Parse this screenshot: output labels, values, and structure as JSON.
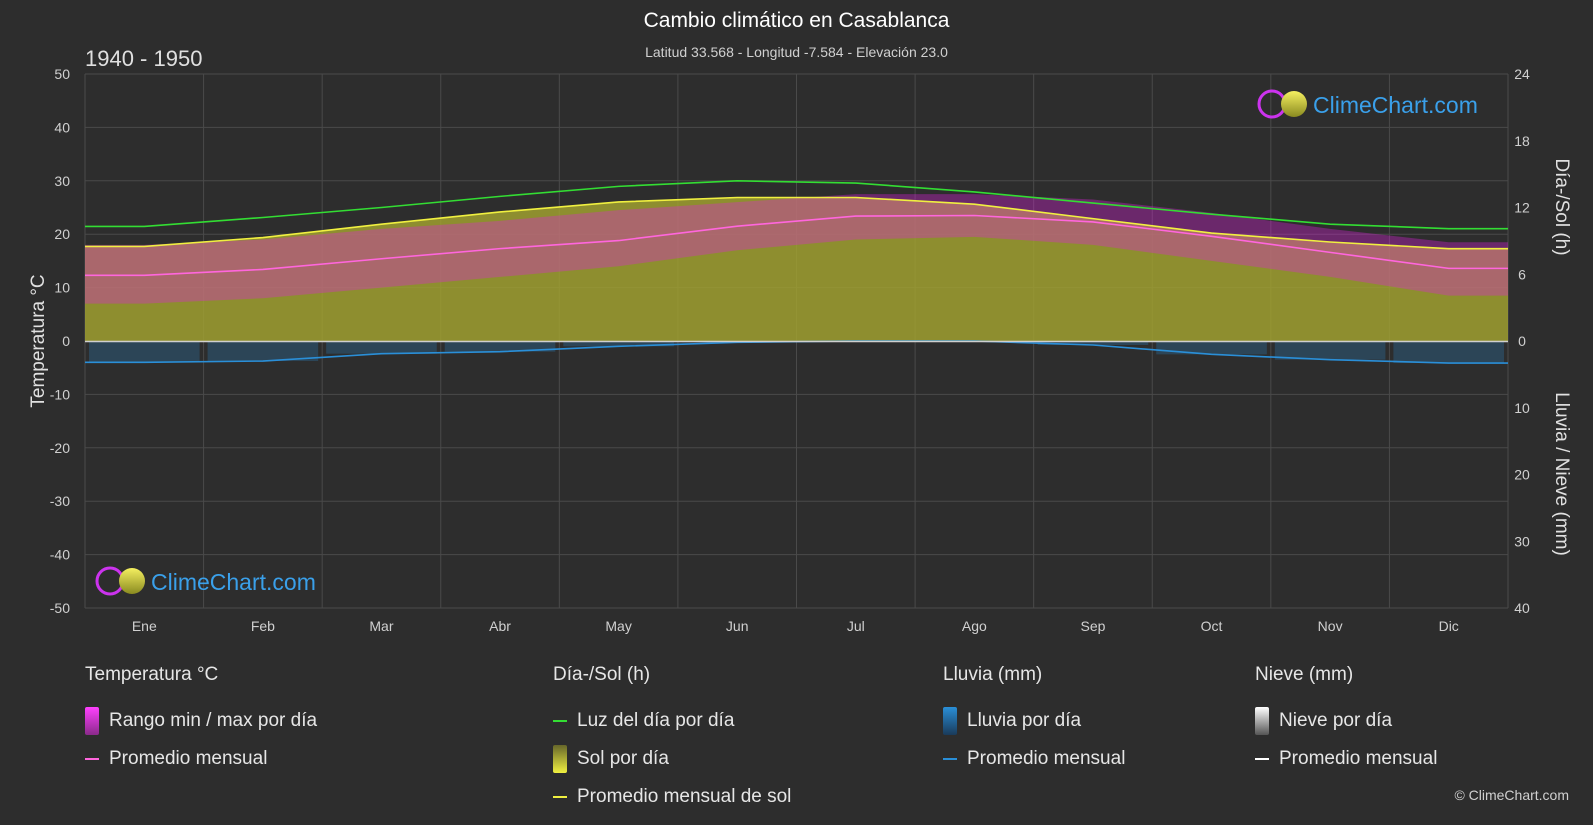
{
  "header": {
    "title": "Cambio climático en Casablanca",
    "subtitle": "Latitud 33.568 - Longitud -7.584 - Elevación 23.0",
    "period": "1940 - 1950"
  },
  "axes": {
    "left_label": "Temperatura °C",
    "right_top_label": "Día-/Sol (h)",
    "right_bottom_label": "Lluvia / Nieve (mm)"
  },
  "watermark": {
    "text": "ClimeChart.com"
  },
  "copyright": "© ClimeChart.com",
  "legend": {
    "temperature": {
      "heading": "Temperatura °C",
      "range": "Rango min / max por día",
      "avg": "Promedio mensual"
    },
    "daysun": {
      "heading": "Día-/Sol (h)",
      "daylight": "Luz del día por día",
      "sun": "Sol por día",
      "sun_avg": "Promedio mensual de sol"
    },
    "rain": {
      "heading": "Lluvia (mm)",
      "rain": "Lluvia por día",
      "avg": "Promedio mensual"
    },
    "snow": {
      "heading": "Nieve (mm)",
      "snow": "Nieve por día",
      "avg": "Promedio mensual"
    }
  },
  "colors": {
    "daylight": "#33dd33",
    "sun_line": "#f0f040",
    "temp_avg": "#ff66dd",
    "temp_range": "#e020e0",
    "sun_fill": "#a0a030",
    "rain": "#2a8fd8",
    "snow": "#ffffff"
  },
  "chart_data": {
    "type": "area",
    "categories": [
      "Ene",
      "Feb",
      "Mar",
      "Abr",
      "May",
      "Jun",
      "Jul",
      "Ago",
      "Sep",
      "Oct",
      "Nov",
      "Dic"
    ],
    "temp_ticks": [
      50,
      40,
      30,
      20,
      10,
      0,
      -10,
      -20,
      -30,
      -40,
      -50
    ],
    "hours_ticks": [
      24,
      18,
      12,
      6,
      0
    ],
    "rain_ticks": [
      0,
      10,
      20,
      30,
      40
    ],
    "ylim_temp": [
      -50,
      50
    ],
    "ylim_hours": [
      0,
      24
    ],
    "ylim_rain_mm": [
      0,
      40
    ],
    "series": [
      {
        "name": "Luz del día por día",
        "unit": "h",
        "values": [
          10.3,
          11.1,
          12.0,
          13.0,
          13.9,
          14.4,
          14.2,
          13.4,
          12.4,
          11.4,
          10.5,
          10.1
        ]
      },
      {
        "name": "Promedio mensual de sol",
        "unit": "h",
        "values": [
          8.5,
          9.3,
          10.5,
          11.6,
          12.5,
          12.9,
          12.9,
          12.3,
          11.0,
          9.7,
          8.9,
          8.3
        ]
      },
      {
        "name": "Temperatura promedio mensual",
        "unit": "°C",
        "values": [
          12.3,
          13.4,
          15.4,
          17.3,
          18.8,
          21.5,
          23.4,
          23.5,
          22.3,
          19.6,
          16.6,
          13.6
        ]
      },
      {
        "name": "Temperatura máxima diaria",
        "unit": "°C",
        "values": [
          18.0,
          19.0,
          21.0,
          22.5,
          24.5,
          26.0,
          27.5,
          27.5,
          26.5,
          24.0,
          21.0,
          18.5
        ]
      },
      {
        "name": "Temperatura mínima diaria",
        "unit": "°C",
        "values": [
          7.0,
          8.0,
          10.0,
          12.0,
          14.0,
          17.0,
          19.0,
          19.5,
          18.0,
          15.0,
          12.0,
          8.5
        ]
      },
      {
        "name": "Lluvia promedio mensual",
        "unit": "mm",
        "values": [
          3.2,
          3.0,
          1.9,
          1.6,
          0.8,
          0.2,
          0.0,
          0.0,
          0.6,
          2.0,
          2.8,
          3.3
        ]
      },
      {
        "name": "Nieve promedio mensual",
        "unit": "mm",
        "values": [
          0,
          0,
          0,
          0,
          0,
          0,
          0,
          0,
          0,
          0,
          0,
          0
        ]
      }
    ],
    "grid": true
  }
}
